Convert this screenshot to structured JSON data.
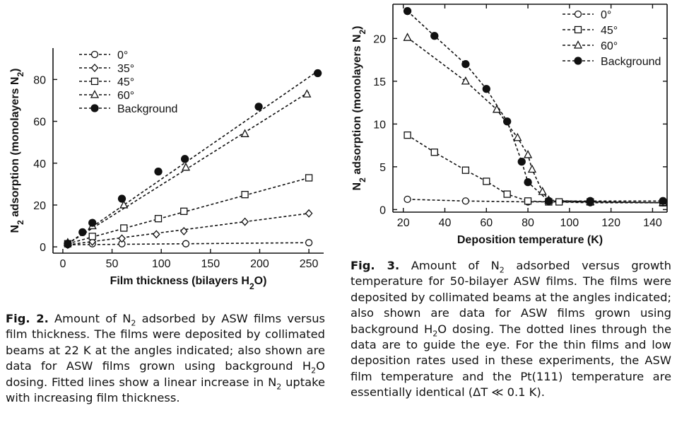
{
  "chart_data": [
    {
      "type": "scatter",
      "xlabel": "Film thickness (bilayers H₂O)",
      "ylabel": "N₂ adsorption (monolayers N₂)",
      "xlim": [
        -10,
        265
      ],
      "ylim": [
        -3,
        95
      ],
      "x_ticks": [
        0,
        50,
        100,
        150,
        200,
        250
      ],
      "y_ticks": [
        0,
        20,
        40,
        60,
        80
      ],
      "grid": false,
      "legend_position": "top-left",
      "series": [
        {
          "name": "0°",
          "marker": "circle-open",
          "x": [
            5,
            30,
            60,
            125,
            250
          ],
          "y": [
            1,
            1.5,
            1.5,
            1.5,
            2
          ]
        },
        {
          "name": "35°",
          "marker": "diamond-open",
          "x": [
            5,
            30,
            60,
            95,
            123,
            185,
            250
          ],
          "y": [
            1,
            2.5,
            4,
            6,
            7.5,
            12,
            16
          ]
        },
        {
          "name": "45°",
          "marker": "square-open",
          "x": [
            5,
            30,
            62,
            97,
            123,
            185,
            250
          ],
          "y": [
            1.5,
            5,
            9,
            13.5,
            17,
            25,
            33
          ]
        },
        {
          "name": "60°",
          "marker": "triangle-open",
          "x": [
            5,
            30,
            62,
            125,
            185,
            248
          ],
          "y": [
            2,
            10,
            20,
            38,
            54,
            73
          ]
        },
        {
          "name": "Background",
          "marker": "circle-filled",
          "x": [
            5,
            20,
            30,
            60,
            97,
            124,
            199,
            259
          ],
          "y": [
            1.5,
            7,
            11.5,
            23,
            36,
            42,
            67,
            83
          ]
        }
      ],
      "fit_lines": [
        {
          "series": "0°",
          "from": [
            5,
            1
          ],
          "to": [
            250,
            2
          ]
        },
        {
          "series": "35°",
          "from": [
            5,
            1
          ],
          "to": [
            250,
            16
          ]
        },
        {
          "series": "45°",
          "from": [
            5,
            1.5
          ],
          "to": [
            250,
            33
          ]
        },
        {
          "series": "60°",
          "from": [
            5,
            1.5
          ],
          "to": [
            250,
            74
          ]
        },
        {
          "series": "Background",
          "from": [
            5,
            1.5
          ],
          "to": [
            259,
            84
          ]
        }
      ]
    },
    {
      "type": "line",
      "xlabel": "Deposition temperature (K)",
      "ylabel": "N₂ adsorption (monolayers N₂)",
      "xlim": [
        15,
        147
      ],
      "ylim": [
        -0.3,
        24
      ],
      "x_ticks": [
        20,
        40,
        60,
        80,
        100,
        120,
        140
      ],
      "y_ticks": [
        0,
        5,
        10,
        15,
        20
      ],
      "grid": false,
      "legend_position": "top-right",
      "series": [
        {
          "name": "0°",
          "marker": "circle-open",
          "x": [
            22,
            50,
            80,
            90,
            110,
            145
          ],
          "y": [
            1.2,
            1,
            0.9,
            0.9,
            0.8,
            0.8
          ]
        },
        {
          "name": "45°",
          "marker": "square-open",
          "x": [
            22,
            35,
            50,
            60,
            70,
            80,
            90,
            95,
            110,
            145
          ],
          "y": [
            8.7,
            6.7,
            4.6,
            3.3,
            1.8,
            1,
            0.9,
            0.9,
            0.9,
            0.8
          ]
        },
        {
          "name": "60°",
          "marker": "triangle-open",
          "x": [
            22,
            50,
            65,
            75,
            80,
            82,
            87,
            90,
            110,
            145
          ],
          "y": [
            20.1,
            15,
            11.7,
            8.4,
            6.4,
            4.7,
            2.1,
            1.1,
            0.9,
            0.8
          ]
        },
        {
          "name": "Background",
          "marker": "circle-filled",
          "x": [
            22,
            35,
            50,
            60,
            70,
            77,
            80,
            90,
            110,
            145
          ],
          "y": [
            23.2,
            20.3,
            17,
            14.1,
            10.3,
            5.6,
            3.2,
            1,
            1,
            1
          ]
        }
      ]
    }
  ],
  "captions": {
    "fig2": {
      "lead": "Fig. 2.",
      "text": [
        "Amount of N",
        "2",
        " adsorbed by ASW films versus film thickness. The films were deposited by collimated beams at 22 K at the angles indicated; also shown are data for ASW films grown using background H",
        "2",
        "O dosing. Fitted lines show a linear increase in N",
        "2",
        " uptake with increasing film thickness."
      ]
    },
    "fig3": {
      "lead": "Fig. 3.",
      "text": [
        "Amount of N",
        "2",
        " adsorbed versus growth temperature for 50-bilayer ASW films. The films were deposited by collimated beams at the angles indicated; also shown are data for ASW films grown using background H",
        "2",
        "O dosing. The dotted lines through the data are to guide the eye. For the thin films and low deposition rates used in these experiments, the ASW film temperature and the Pt(111) temperature are essentially identical (ΔT ≪ 0.1 K)."
      ]
    }
  }
}
